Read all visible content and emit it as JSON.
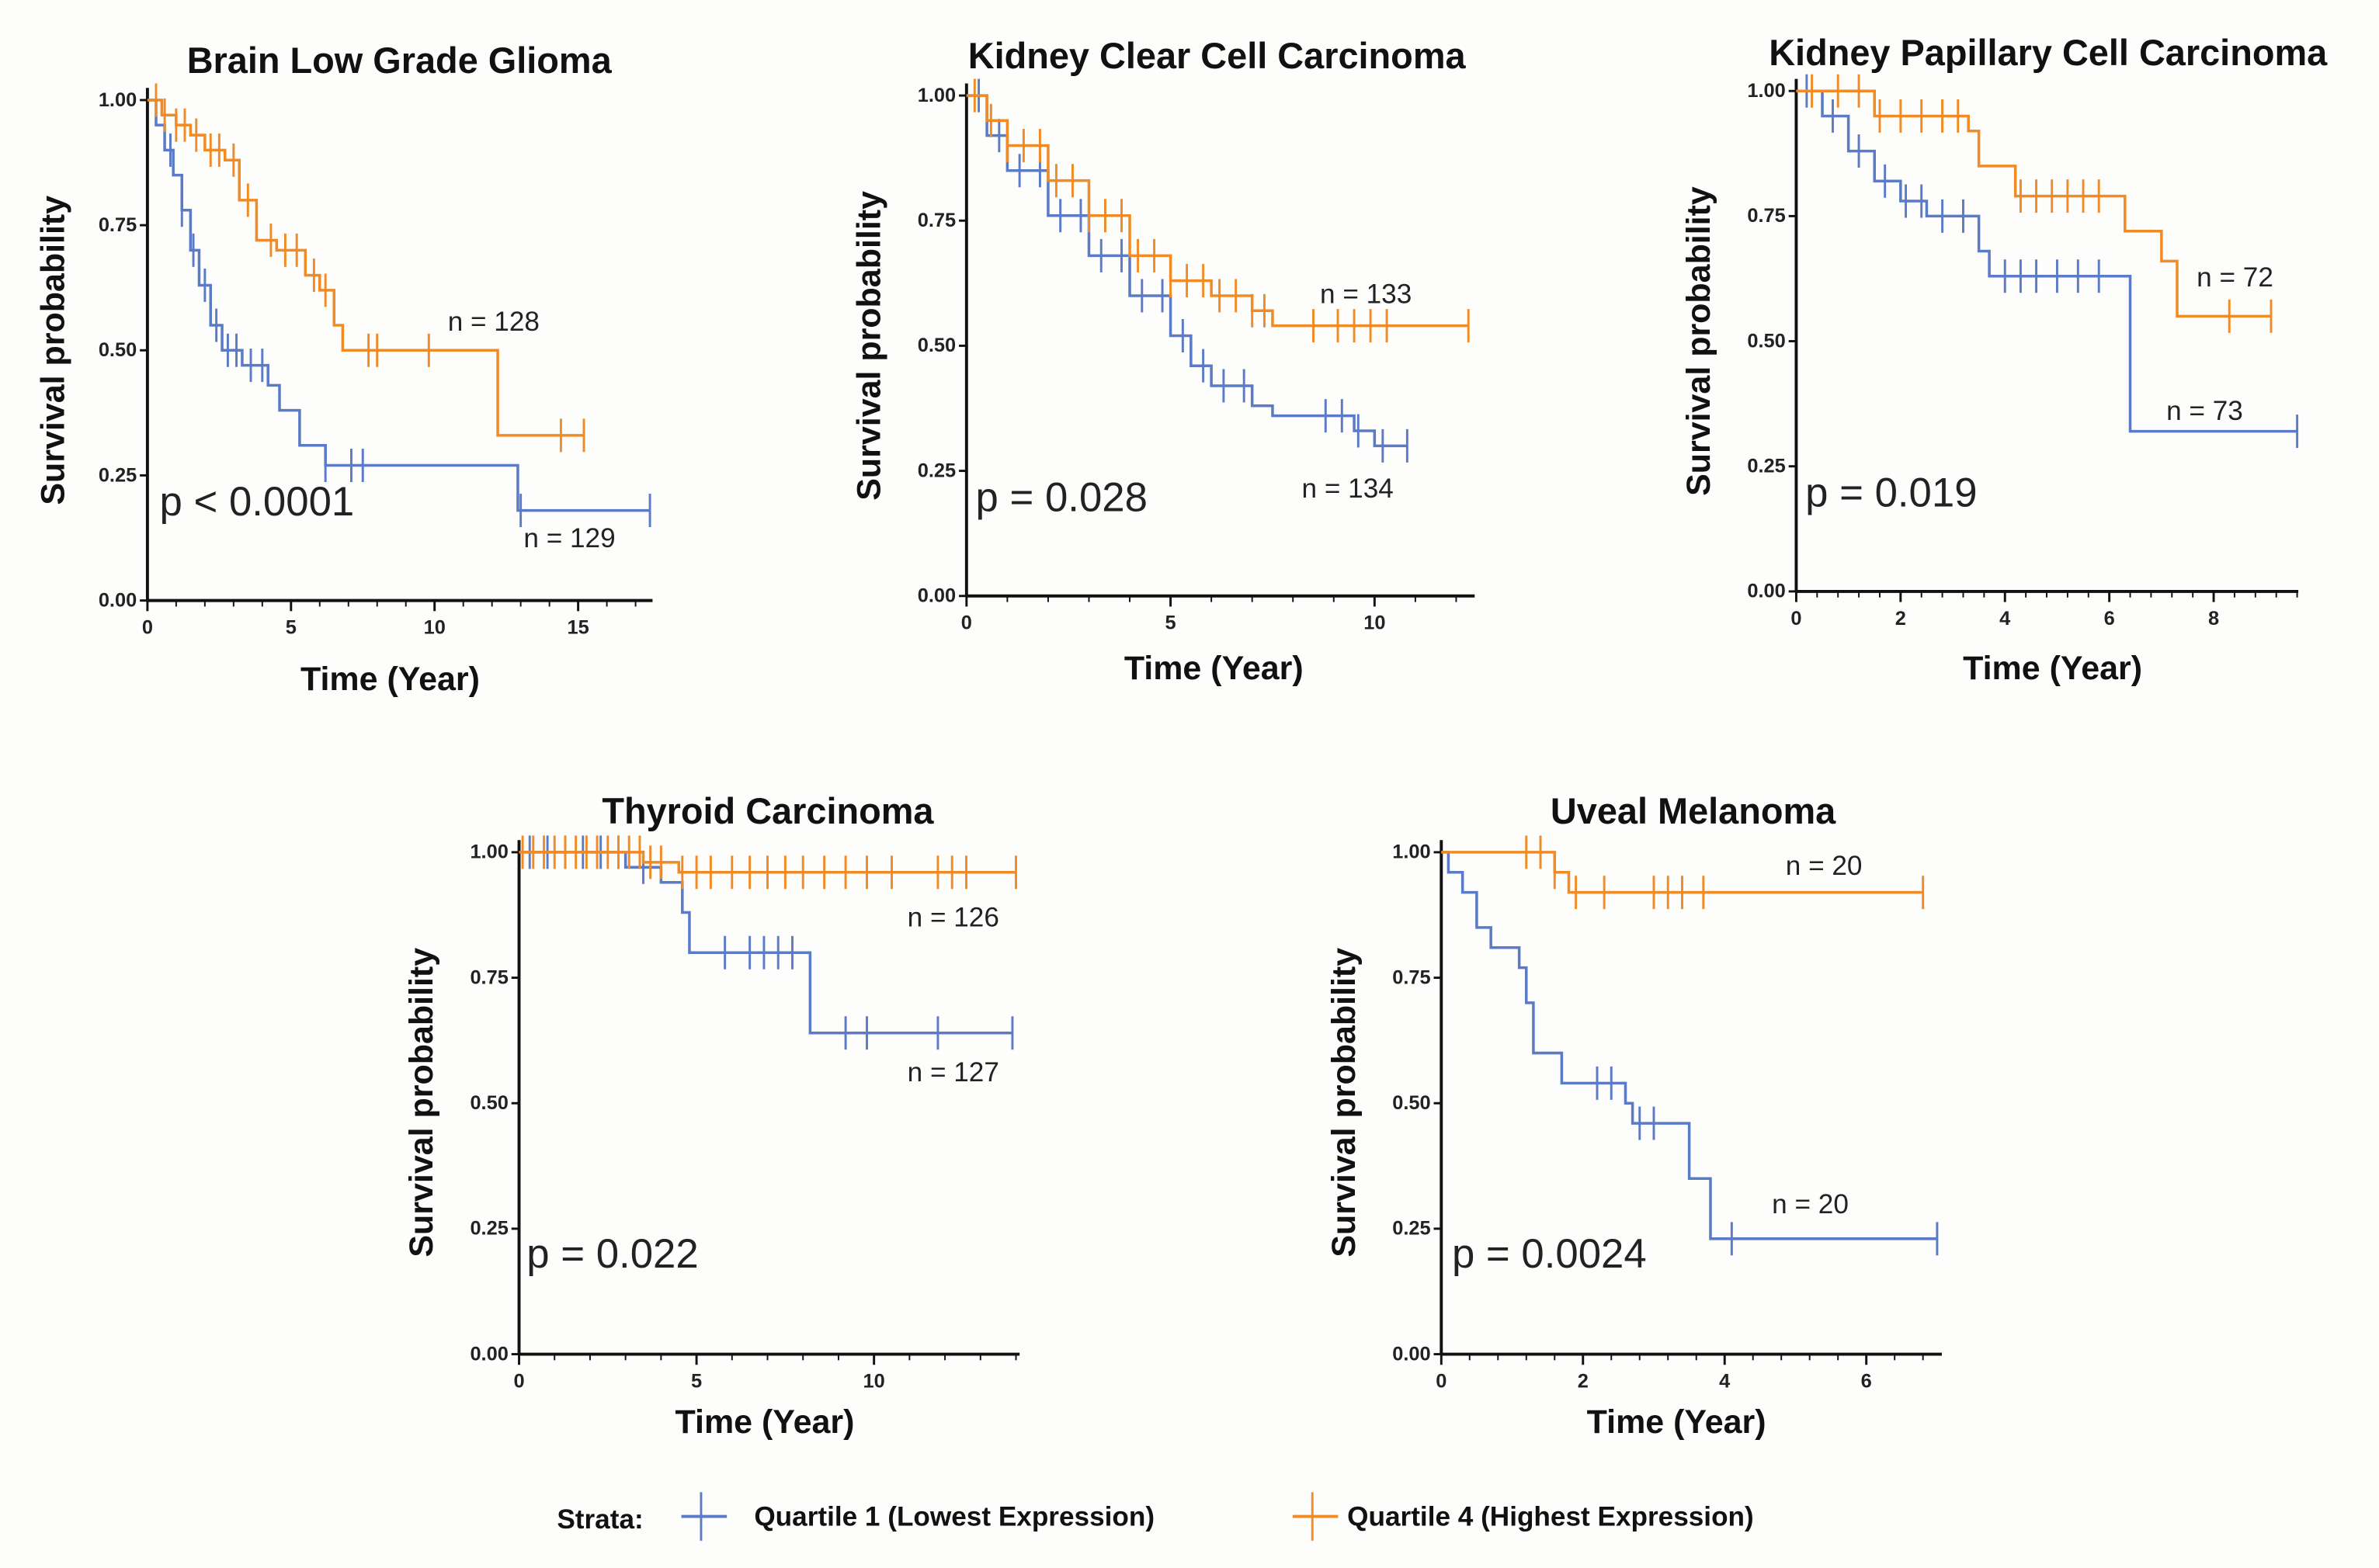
{
  "colors": {
    "q1": "#5b7bc6",
    "q4": "#f08b26",
    "axis": "#111111"
  },
  "legend": {
    "title": "Strata:",
    "q1_label": "Quartile 1 (Lowest Expression)",
    "q4_label": "Quartile 4 (Highest Expression)"
  },
  "chart_data": [
    {
      "type": "line",
      "title": "Brain  Low  Grade  Glioma",
      "xlabel": "Time  (Year)",
      "ylabel": "Survival probability",
      "xlim": [
        0,
        17.5
      ],
      "ylim": [
        0,
        1
      ],
      "xticks": [
        0,
        5,
        10,
        15
      ],
      "yticks": [
        "0.00",
        "0.25",
        "0.50",
        "0.75",
        "1.00"
      ],
      "p_value": "p < 0.0001",
      "series": [
        {
          "name": "Quartile 1 (Lowest Expression)",
          "n_label": "n = 129",
          "steps": [
            [
              0,
              1
            ],
            [
              0.3,
              0.95
            ],
            [
              0.6,
              0.9
            ],
            [
              0.9,
              0.85
            ],
            [
              1.2,
              0.78
            ],
            [
              1.5,
              0.7
            ],
            [
              1.8,
              0.63
            ],
            [
              2.2,
              0.55
            ],
            [
              2.6,
              0.5
            ],
            [
              3.3,
              0.47
            ],
            [
              4.2,
              0.43
            ],
            [
              4.6,
              0.38
            ],
            [
              5.3,
              0.31
            ],
            [
              6.2,
              0.27
            ],
            [
              12.9,
              0.18
            ]
          ],
          "end": 17.5,
          "censors": [
            0.8,
            1.2,
            1.6,
            2,
            2.4,
            2.8,
            3.1,
            3.6,
            4,
            6.2,
            7.1,
            7.5,
            13,
            17.5
          ]
        },
        {
          "name": "Quartile 4 (Highest Expression)",
          "n_label": "n = 128",
          "steps": [
            [
              0,
              1
            ],
            [
              0.5,
              0.97
            ],
            [
              1,
              0.95
            ],
            [
              1.5,
              0.93
            ],
            [
              2,
              0.9
            ],
            [
              2.7,
              0.88
            ],
            [
              3.2,
              0.8
            ],
            [
              3.8,
              0.72
            ],
            [
              4.5,
              0.7
            ],
            [
              5.5,
              0.65
            ],
            [
              6,
              0.62
            ],
            [
              6.5,
              0.55
            ],
            [
              6.8,
              0.5
            ],
            [
              12.2,
              0.33
            ]
          ],
          "end": 15.2,
          "censors": [
            0.3,
            0.6,
            1,
            1.3,
            1.7,
            2.2,
            2.5,
            3,
            3.5,
            4.3,
            4.8,
            5.2,
            5.8,
            6.2,
            7.7,
            8,
            9.8,
            14.4,
            15.2
          ]
        }
      ]
    },
    {
      "type": "line",
      "title": "Kidney Clear Cell Carcinoma",
      "xlabel": "Time  (Year)",
      "ylabel": "Survival probability",
      "xlim": [
        0,
        12.5
      ],
      "ylim": [
        0,
        1
      ],
      "xticks": [
        0,
        5,
        10
      ],
      "yticks": [
        "0.00",
        "0.25",
        "0.50",
        "0.75",
        "1.00"
      ],
      "p_value": "p = 0.028",
      "series": [
        {
          "name": "Quartile 1 (Lowest Expression)",
          "n_label": "n = 134",
          "steps": [
            [
              0,
              1
            ],
            [
              0.5,
              0.92
            ],
            [
              1,
              0.85
            ],
            [
              2,
              0.76
            ],
            [
              3,
              0.68
            ],
            [
              4,
              0.6
            ],
            [
              5,
              0.52
            ],
            [
              5.5,
              0.46
            ],
            [
              6,
              0.42
            ],
            [
              7,
              0.38
            ],
            [
              7.5,
              0.36
            ],
            [
              9.5,
              0.33
            ],
            [
              10,
              0.3
            ]
          ],
          "end": 10.8,
          "censors": [
            0.3,
            0.8,
            1.3,
            1.8,
            2.3,
            2.8,
            3.3,
            3.8,
            4.3,
            4.8,
            5.3,
            5.8,
            6.3,
            6.8,
            8.8,
            9.2,
            9.6,
            10.2,
            10.8
          ]
        },
        {
          "name": "Quartile 4 (Highest Expression)",
          "n_label": "n = 133",
          "steps": [
            [
              0,
              1
            ],
            [
              0.5,
              0.95
            ],
            [
              1,
              0.9
            ],
            [
              2,
              0.83
            ],
            [
              3,
              0.76
            ],
            [
              4,
              0.68
            ],
            [
              5,
              0.63
            ],
            [
              6,
              0.6
            ],
            [
              7,
              0.57
            ],
            [
              7.5,
              0.54
            ]
          ],
          "end": 12.3,
          "censors": [
            0.2,
            0.6,
            1,
            1.4,
            1.8,
            2.2,
            2.6,
            3,
            3.4,
            3.8,
            4.2,
            4.6,
            5,
            5.4,
            5.8,
            6.2,
            6.6,
            7,
            7.3,
            8.5,
            9.1,
            9.5,
            9.9,
            10.3,
            12.3
          ]
        }
      ]
    },
    {
      "type": "line",
      "title": "Kidney Papillary Cell Carcinoma",
      "xlabel": "Time  (Year)",
      "ylabel": "Survival probability",
      "xlim": [
        0,
        9.6
      ],
      "ylim": [
        0,
        1
      ],
      "xticks": [
        0,
        2,
        4,
        6,
        8
      ],
      "yticks": [
        "0.00",
        "0.25",
        "0.50",
        "0.75",
        "1.00"
      ],
      "p_value": "p = 0.019",
      "series": [
        {
          "name": "Quartile 1 (Lowest Expression)",
          "n_label": "n = 73",
          "steps": [
            [
              0,
              1
            ],
            [
              0.5,
              0.95
            ],
            [
              1,
              0.88
            ],
            [
              1.5,
              0.82
            ],
            [
              2,
              0.78
            ],
            [
              2.5,
              0.75
            ],
            [
              3.5,
              0.68
            ],
            [
              3.7,
              0.63
            ],
            [
              6.4,
              0.32
            ]
          ],
          "end": 9.6,
          "censors": [
            0.2,
            0.7,
            1.2,
            1.7,
            2.1,
            2.4,
            2.8,
            3.2,
            4,
            4.3,
            4.6,
            5,
            5.4,
            5.8,
            9.6
          ]
        },
        {
          "name": "Quartile 4 (Highest Expression)",
          "n_label": "n = 72",
          "steps": [
            [
              0,
              1
            ],
            [
              1.5,
              0.95
            ],
            [
              3.3,
              0.92
            ],
            [
              3.5,
              0.85
            ],
            [
              4.2,
              0.79
            ],
            [
              6.3,
              0.72
            ],
            [
              7,
              0.66
            ],
            [
              7.3,
              0.55
            ]
          ],
          "end": 9.1,
          "censors": [
            0.3,
            0.8,
            1.2,
            1.6,
            2,
            2.4,
            2.8,
            3.1,
            4.3,
            4.6,
            4.9,
            5.2,
            5.5,
            5.8,
            8.3,
            9.1
          ]
        }
      ]
    },
    {
      "type": "line",
      "title": "Thyroid Carcinoma",
      "xlabel": "Time  (Year)",
      "ylabel": "Survival probability",
      "xlim": [
        0,
        14
      ],
      "ylim": [
        0,
        1
      ],
      "xticks": [
        0,
        5,
        10
      ],
      "yticks": [
        "0.00",
        "0.25",
        "0.50",
        "0.75",
        "1.00"
      ],
      "p_value": "p = 0.022",
      "series": [
        {
          "name": "Quartile 1 (Lowest Expression)",
          "n_label": "n = 127",
          "steps": [
            [
              0,
              1
            ],
            [
              3,
              0.97
            ],
            [
              4,
              0.94
            ],
            [
              4.6,
              0.88
            ],
            [
              4.8,
              0.8
            ],
            [
              8.2,
              0.64
            ]
          ],
          "end": 13.9,
          "censors": [
            0.3,
            0.8,
            1.3,
            1.8,
            2.3,
            2.8,
            3.5,
            5.8,
            6.5,
            6.9,
            7.3,
            7.7,
            9.2,
            9.8,
            11.8,
            13.9
          ]
        },
        {
          "name": "Quartile 4 (Highest Expression)",
          "n_label": "n = 126",
          "steps": [
            [
              0,
              1
            ],
            [
              3.5,
              0.98
            ],
            [
              4.5,
              0.96
            ]
          ],
          "end": 14,
          "censors": [
            0.1,
            0.4,
            0.7,
            1,
            1.3,
            1.6,
            1.9,
            2.2,
            2.5,
            2.8,
            3.1,
            3.4,
            3.7,
            4,
            4.6,
            5,
            5.4,
            6,
            6.5,
            7,
            7.5,
            8,
            8.6,
            9.2,
            9.8,
            10.5,
            11.8,
            12.2,
            12.6,
            14
          ]
        }
      ]
    },
    {
      "type": "line",
      "title": "Uveal Melanoma",
      "xlabel": "Time  (Year)",
      "ylabel": "Survival probability",
      "xlim": [
        0,
        7.1
      ],
      "ylim": [
        0,
        1
      ],
      "xticks": [
        0,
        2,
        4,
        6
      ],
      "yticks": [
        "0.00",
        "0.25",
        "0.50",
        "0.75",
        "1.00"
      ],
      "p_value": "p = 0.0024",
      "series": [
        {
          "name": "Quartile 1 (Lowest Expression)",
          "n_label": "n = 20",
          "steps": [
            [
              0,
              1
            ],
            [
              0.1,
              0.96
            ],
            [
              0.3,
              0.92
            ],
            [
              0.5,
              0.85
            ],
            [
              0.7,
              0.81
            ],
            [
              1.1,
              0.77
            ],
            [
              1.2,
              0.7
            ],
            [
              1.3,
              0.6
            ],
            [
              1.7,
              0.54
            ],
            [
              2.6,
              0.5
            ],
            [
              2.7,
              0.46
            ],
            [
              3.5,
              0.35
            ],
            [
              3.8,
              0.23
            ]
          ],
          "end": 7,
          "censors": [
            2.2,
            2.4,
            2.8,
            3,
            4.1,
            7
          ]
        },
        {
          "name": "Quartile 4 (Highest Expression)",
          "n_label": "n = 20",
          "steps": [
            [
              0,
              1
            ],
            [
              1.6,
              0.96
            ],
            [
              1.8,
              0.92
            ]
          ],
          "end": 6.8,
          "censors": [
            1.2,
            1.4,
            1.6,
            1.9,
            2.3,
            3,
            3.2,
            3.4,
            3.7,
            6.8
          ]
        }
      ]
    }
  ]
}
